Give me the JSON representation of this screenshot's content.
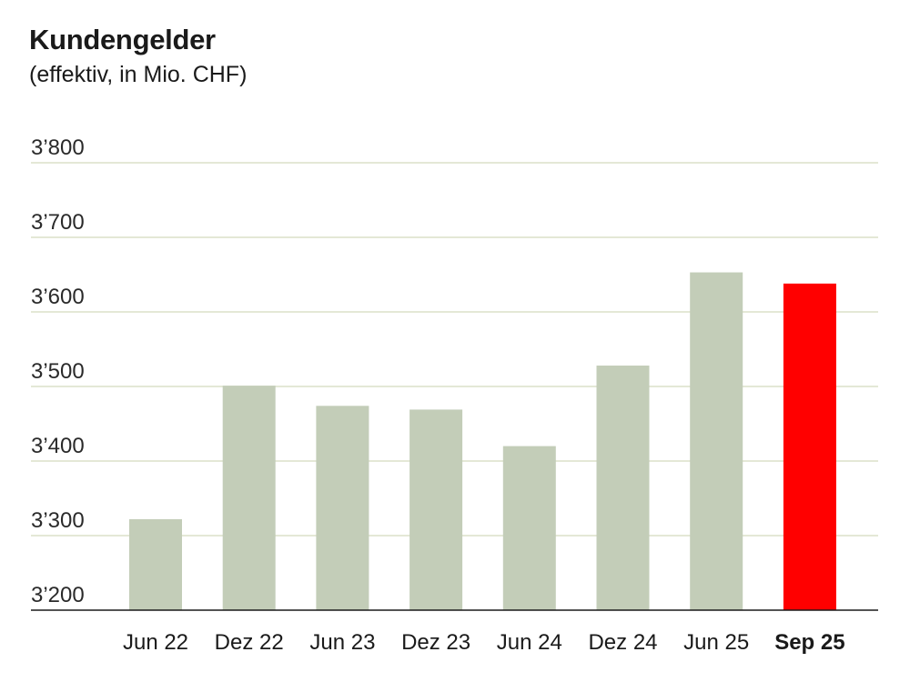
{
  "chart_data": {
    "type": "bar",
    "title": "Kundengelder",
    "subtitle": "(effektiv, in Mio. CHF)",
    "categories": [
      "Jun 22",
      "Dez 22",
      "Jun 23",
      "Dez 23",
      "Jun 24",
      "Dez 24",
      "Jun 25",
      "Sep 25"
    ],
    "values": [
      3322,
      3501,
      3474,
      3469,
      3420,
      3528,
      3653,
      3638
    ],
    "highlight_index": 7,
    "ylim": [
      3200,
      3800
    ],
    "yticks": [
      3200,
      3300,
      3400,
      3500,
      3600,
      3700,
      3800
    ],
    "ytick_labels": [
      "3’200",
      "3’300",
      "3’400",
      "3’500",
      "3’600",
      "3’700",
      "3’800"
    ],
    "xlabel": "",
    "ylabel": "",
    "grid": true,
    "colors": {
      "bar": "#c3cdb8",
      "highlight": "#ff0000",
      "grid": "#e4e8d6",
      "axis": "#1a1a1a"
    }
  }
}
